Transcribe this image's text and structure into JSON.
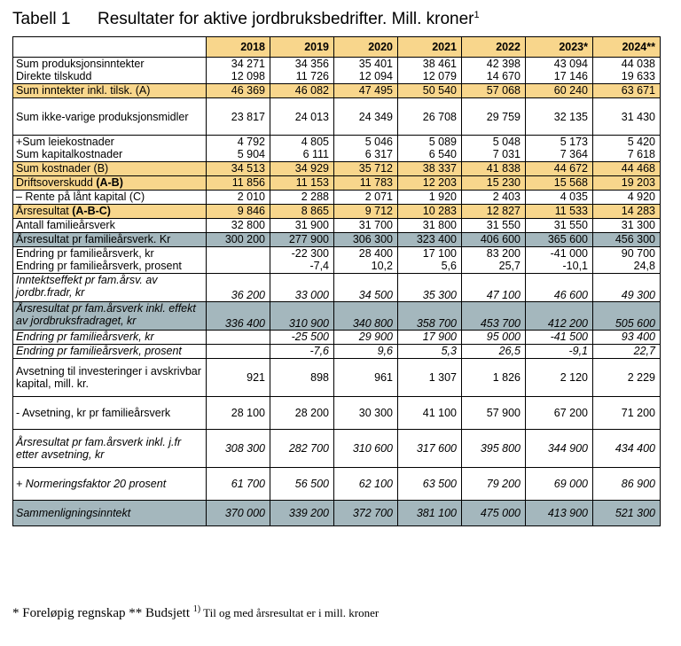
{
  "heading": {
    "table_number": "Tabell 1",
    "title": "Resultater for aktive jordbruksbedrifter. Mill. kroner",
    "title_sup": "1"
  },
  "years": [
    "2018",
    "2019",
    "2020",
    "2021",
    "2022",
    "2023*",
    "2024**"
  ],
  "rows": [
    {
      "labels": [
        "Sum produksjonsinntekter",
        "Direkte tilskudd"
      ],
      "values": [
        [
          "34 271",
          "12 098"
        ],
        [
          "34 356",
          "11 726"
        ],
        [
          "35 401",
          "12 094"
        ],
        [
          "38 461",
          "12 079"
        ],
        [
          "42 398",
          "14 670"
        ],
        [
          "43 094",
          "17 146"
        ],
        [
          "44 038",
          "19 633"
        ]
      ]
    },
    {
      "style": "y",
      "labels": [
        "Sum inntekter inkl. tilsk. (A)"
      ],
      "values": [
        [
          "46 369"
        ],
        [
          "46 082"
        ],
        [
          "47 495"
        ],
        [
          "50 540"
        ],
        [
          "57 068"
        ],
        [
          "60 240"
        ],
        [
          "63 671"
        ]
      ]
    },
    {
      "labels": [
        "Sum ikke-varige produksjonsmidler"
      ],
      "valign": "mid",
      "values": [
        [
          "23 817"
        ],
        [
          "24 013"
        ],
        [
          "24 349"
        ],
        [
          "26 708"
        ],
        [
          "29 759"
        ],
        [
          "32 135"
        ],
        [
          "31 430"
        ]
      ]
    },
    {
      "labels": [
        "+Sum leiekostnader",
        "Sum kapitalkostnader"
      ],
      "values": [
        [
          "4 792",
          "5 904"
        ],
        [
          "4 805",
          "6 111"
        ],
        [
          "5 046",
          "6 317"
        ],
        [
          "5 089",
          "6 540"
        ],
        [
          "5 048",
          "7 031"
        ],
        [
          "5 173",
          "7 364"
        ],
        [
          "5 420",
          "7 618"
        ]
      ]
    },
    {
      "style": "y",
      "labels": [
        "Sum kostnader (B)"
      ],
      "values": [
        [
          "34 513"
        ],
        [
          "34 929"
        ],
        [
          "35 712"
        ],
        [
          "38 337"
        ],
        [
          "41 838"
        ],
        [
          "44 672"
        ],
        [
          "44 468"
        ]
      ]
    },
    {
      "style": "y",
      "labels": [
        "Driftsoverskudd "
      ],
      "bold_suffix": "(A-B)",
      "values": [
        [
          "11 856"
        ],
        [
          "11 153"
        ],
        [
          "11 783"
        ],
        [
          "12 203"
        ],
        [
          "15 230"
        ],
        [
          "15 568"
        ],
        [
          "19 203"
        ]
      ]
    },
    {
      "labels": [
        "– Rente på lånt kapital (C)"
      ],
      "values": [
        [
          "2 010"
        ],
        [
          "2 288"
        ],
        [
          "2 071"
        ],
        [
          "1 920"
        ],
        [
          "2 403"
        ],
        [
          "4 035"
        ],
        [
          "4 920"
        ]
      ]
    },
    {
      "style": "y",
      "labels": [
        "Årsresultat "
      ],
      "bold_suffix": "(A-B-C)",
      "values": [
        [
          "9 846"
        ],
        [
          "8 865"
        ],
        [
          "9 712"
        ],
        [
          "10 283"
        ],
        [
          "12 827"
        ],
        [
          "11 533"
        ],
        [
          "14 283"
        ]
      ]
    },
    {
      "labels": [
        "Antall familieårsverk"
      ],
      "values": [
        [
          "32 800"
        ],
        [
          "31 900"
        ],
        [
          "31 700"
        ],
        [
          "31 800"
        ],
        [
          "31 550"
        ],
        [
          "31 550"
        ],
        [
          "31 300"
        ]
      ]
    },
    {
      "style": "g",
      "labels": [
        "Årsresultat pr familieårsverk. Kr"
      ],
      "values": [
        [
          "300 200"
        ],
        [
          "277 900"
        ],
        [
          "306 300"
        ],
        [
          "323 400"
        ],
        [
          "406 600"
        ],
        [
          "365 600"
        ],
        [
          "456 300"
        ]
      ]
    },
    {
      "labels": [
        "Endring pr familieårsverk, kr",
        "Endring pr familieårsverk, prosent"
      ],
      "values": [
        [
          "",
          ""
        ],
        [
          "-22 300",
          "-7,4"
        ],
        [
          "28 400",
          "10,2"
        ],
        [
          "17 100",
          "5,6"
        ],
        [
          "83 200",
          "25,7"
        ],
        [
          "-41 000",
          "-10,1"
        ],
        [
          "90 700",
          "24,8"
        ]
      ]
    },
    {
      "style": "it",
      "valign": "bot",
      "labels": [
        "Inntektseffekt pr fam.årsv. av jordbr.fradr, kr"
      ],
      "values": [
        [
          "36 200"
        ],
        [
          "33 000"
        ],
        [
          "34 500"
        ],
        [
          "35 300"
        ],
        [
          "47 100"
        ],
        [
          "46 600"
        ],
        [
          "49 300"
        ]
      ]
    },
    {
      "style": "g it",
      "valign": "bot",
      "labels": [
        "Årsresultat pr fam.årsverk inkl. effekt av jordbruksfradraget, kr"
      ],
      "values": [
        [
          "336 400"
        ],
        [
          "310 900"
        ],
        [
          "340 800"
        ],
        [
          "358 700"
        ],
        [
          "453 700"
        ],
        [
          "412 200"
        ],
        [
          "505 600"
        ]
      ]
    },
    {
      "style": "it",
      "labels": [
        "Endring pr familieårsverk, kr"
      ],
      "values": [
        [
          ""
        ],
        [
          "-25 500"
        ],
        [
          "29 900"
        ],
        [
          "17 900"
        ],
        [
          "95 000"
        ],
        [
          "-41 500"
        ],
        [
          "93 400"
        ]
      ]
    },
    {
      "style": "it",
      "labels": [
        "Endring pr familieårsverk, prosent"
      ],
      "values": [
        [
          ""
        ],
        [
          "-7,6"
        ],
        [
          "9,6"
        ],
        [
          "5,3"
        ],
        [
          "26,5"
        ],
        [
          "-9,1"
        ],
        [
          "22,7"
        ]
      ]
    },
    {
      "valign": "mid",
      "labels": [
        "Avsetning til investeringer i avskrivbar kapital, mill. kr."
      ],
      "values": [
        [
          "921"
        ],
        [
          "898"
        ],
        [
          "961"
        ],
        [
          "1 307"
        ],
        [
          "1 826"
        ],
        [
          "2 120"
        ],
        [
          "2 229"
        ]
      ]
    },
    {
      "valign": "mid",
      "labels": [
        "- Avsetning, kr pr familieårsverk"
      ],
      "values": [
        [
          "28 100"
        ],
        [
          "28 200"
        ],
        [
          "30 300"
        ],
        [
          "41 100"
        ],
        [
          "57 900"
        ],
        [
          "67 200"
        ],
        [
          "71 200"
        ]
      ]
    },
    {
      "style": "it",
      "valign": "mid",
      "labels": [
        "Årsresultat pr fam.årsverk inkl. j.fr etter avsetning, kr"
      ],
      "values": [
        [
          "308 300"
        ],
        [
          "282 700"
        ],
        [
          "310 600"
        ],
        [
          "317 600"
        ],
        [
          "395 800"
        ],
        [
          "344 900"
        ],
        [
          "434 400"
        ]
      ]
    },
    {
      "style": "it",
      "valign": "mid",
      "labels": [
        "+ Normeringsfaktor 20 prosent"
      ],
      "values": [
        [
          "61 700"
        ],
        [
          "56 500"
        ],
        [
          "62 100"
        ],
        [
          "63 500"
        ],
        [
          "79 200"
        ],
        [
          "69 000"
        ],
        [
          "86 900"
        ]
      ]
    },
    {
      "style": "g it",
      "valign": "mid",
      "labels": [
        "Sammenligningsinntekt"
      ],
      "values": [
        [
          "370 000"
        ],
        [
          "339 200"
        ],
        [
          "372 700"
        ],
        [
          "381 100"
        ],
        [
          "475 000"
        ],
        [
          "413 900"
        ],
        [
          "521 300"
        ]
      ]
    }
  ],
  "footnote": {
    "part1": "* Foreløpig regnskap ** Budsjett ",
    "sup": "1)",
    "part2": " Til og med årsresultat er i mill. kroner"
  }
}
